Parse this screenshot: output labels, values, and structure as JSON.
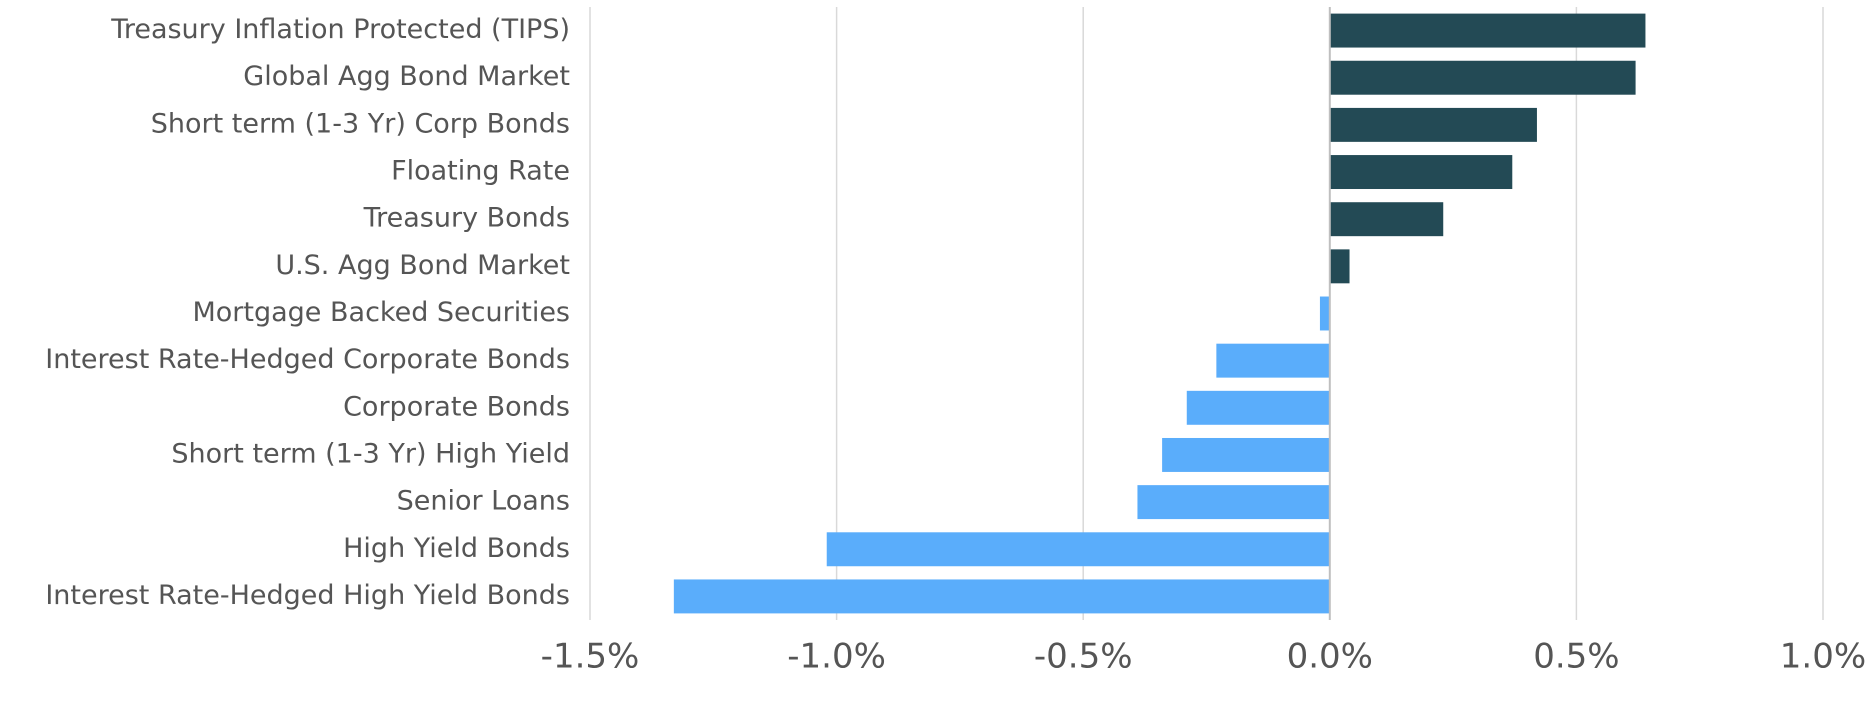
{
  "chart_data": {
    "type": "barh",
    "categories": [
      "Treasury Inflation Protected (TIPS)",
      "Global Agg Bond Market",
      "Short term (1-3 Yr) Corp Bonds",
      "Floating Rate",
      "Treasury Bonds",
      "U.S. Agg Bond Market",
      "Mortgage Backed Securities",
      "Interest Rate-Hedged Corporate Bonds",
      "Corporate Bonds",
      "Short term (1-3 Yr) High Yield",
      "Senior Loans",
      "High Yield Bonds",
      "Interest Rate-Hedged High Yield Bonds"
    ],
    "values": [
      0.64,
      0.62,
      0.42,
      0.37,
      0.23,
      0.04,
      -0.02,
      -0.23,
      -0.29,
      -0.34,
      -0.39,
      -1.02,
      -1.33
    ],
    "positive_color": "#234a55",
    "negative_color": "#5aadfb",
    "xlim": [
      -1.5,
      1.0
    ],
    "xticks": [
      {
        "value": -1.5,
        "label": "-1.5%"
      },
      {
        "value": -1.0,
        "label": "-1.0%"
      },
      {
        "value": -0.5,
        "label": "-0.5%"
      },
      {
        "value": 0.0,
        "label": "0.0%"
      },
      {
        "value": 0.5,
        "label": "0.5%"
      },
      {
        "value": 1.0,
        "label": "1.0%"
      }
    ],
    "grid": true
  }
}
